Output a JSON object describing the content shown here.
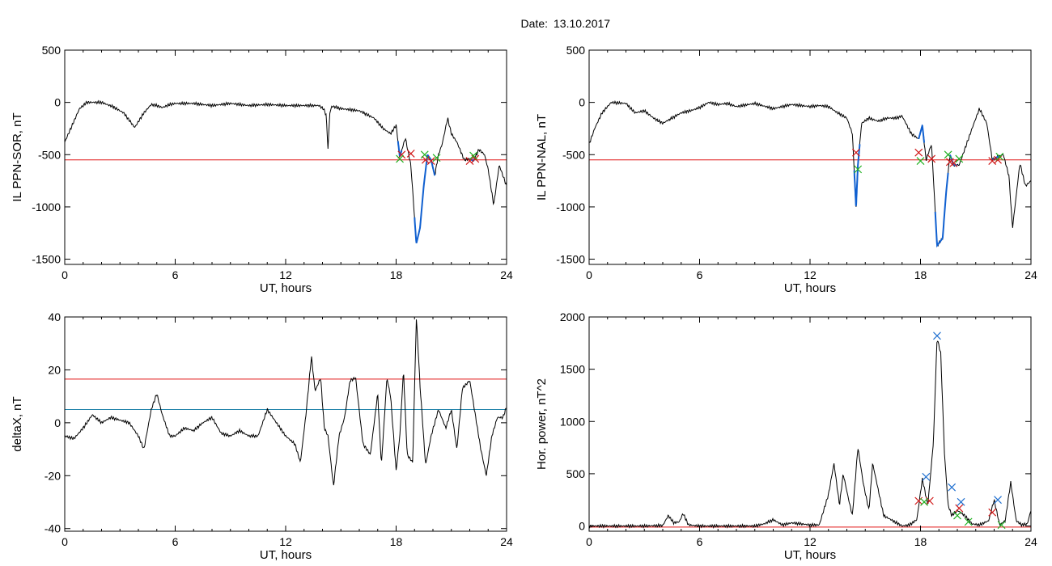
{
  "header": {
    "date_label": "Date:",
    "date_value": "13.10.2017"
  },
  "colors": {
    "trace": "#000000",
    "threshold_red": "#e01010",
    "threshold_blue": "#1a7fa8",
    "blue_segment": "#1060d0",
    "marker_red": "#d01818",
    "marker_green": "#20b020",
    "marker_blue": "#2070d0"
  },
  "chart_data": [
    {
      "id": "p1",
      "type": "line",
      "ylabel": "IL PPN-SOR, nT",
      "xlabel": "UT, hours",
      "xlim": [
        0,
        24
      ],
      "ylim": [
        -1550,
        500
      ],
      "xticks": [
        0,
        6,
        12,
        18,
        24
      ],
      "yticks": [
        500,
        0,
        -500,
        -1000,
        -1500
      ],
      "xtick_labels": [
        "0",
        "6",
        "12",
        "18",
        "24"
      ],
      "ytick_labels": [
        "500",
        "0",
        "-500",
        "-1000",
        "-1500"
      ],
      "threshold": -550,
      "series": [
        {
          "x": [
            0,
            0.2,
            0.5,
            0.8,
            1.2,
            2,
            2.6,
            3.2,
            3.8,
            4.3,
            4.7,
            5,
            5.3,
            5.7,
            6,
            7,
            8,
            9,
            10,
            11,
            12,
            13,
            13.8,
            14.05,
            14.2,
            14.3,
            14.4,
            14.5,
            14.6,
            15,
            16,
            16.8,
            17.3,
            17.7,
            18,
            18.2,
            18.5,
            18.8,
            19.1,
            19.3,
            19.5,
            19.7,
            19.9,
            20.1,
            20.3,
            20.5,
            20.8,
            21,
            21.3,
            21.7,
            22,
            22.2,
            22.5,
            22.8,
            23,
            23.3,
            23.6,
            24
          ],
          "y": [
            -380,
            -300,
            -180,
            -60,
            0,
            0,
            -40,
            -100,
            -240,
            -100,
            -20,
            -30,
            -50,
            -20,
            -10,
            -10,
            -30,
            -10,
            -30,
            -20,
            -30,
            -30,
            -30,
            -60,
            -120,
            -450,
            -100,
            -40,
            -40,
            -60,
            -80,
            -150,
            -250,
            -300,
            -220,
            -520,
            -340,
            -600,
            -1350,
            -1200,
            -800,
            -500,
            -550,
            -700,
            -500,
            -400,
            -150,
            -300,
            -380,
            -550,
            -540,
            -560,
            -450,
            -500,
            -640,
            -980,
            -600,
            -800
          ]
        }
      ],
      "blue_segments": [
        [
          18.1,
          18.3
        ],
        [
          19.0,
          19.7
        ],
        [
          19.7,
          20.1
        ],
        [
          22,
          22.3
        ]
      ],
      "markers": [
        {
          "x": 18.3,
          "y": -500,
          "c": "red"
        },
        {
          "x": 18.8,
          "y": -490,
          "c": "red"
        },
        {
          "x": 19.6,
          "y": -550,
          "c": "red"
        },
        {
          "x": 19.9,
          "y": -560,
          "c": "red"
        },
        {
          "x": 22.0,
          "y": -560,
          "c": "red"
        },
        {
          "x": 22.3,
          "y": -540,
          "c": "red"
        },
        {
          "x": 18.2,
          "y": -540,
          "c": "green"
        },
        {
          "x": 19.55,
          "y": -500,
          "c": "green"
        },
        {
          "x": 20.2,
          "y": -530,
          "c": "green"
        },
        {
          "x": 22.2,
          "y": -510,
          "c": "green"
        }
      ]
    },
    {
      "id": "p2",
      "type": "line",
      "ylabel": "IL PPN-NAL, nT",
      "xlabel": "UT, hours",
      "xlim": [
        0,
        24
      ],
      "ylim": [
        -1550,
        500
      ],
      "xticks": [
        0,
        6,
        12,
        18,
        24
      ],
      "yticks": [
        500,
        0,
        -500,
        -1000,
        -1500
      ],
      "xtick_labels": [
        "0",
        "6",
        "12",
        "18",
        "24"
      ],
      "ytick_labels": [
        "500",
        "0",
        "-500",
        "-1000",
        "-1500"
      ],
      "threshold": -550,
      "series": [
        {
          "x": [
            0,
            0.3,
            0.7,
            1.2,
            2,
            2.5,
            3,
            3.5,
            4,
            4.5,
            5,
            5.5,
            6,
            6.5,
            7,
            7.5,
            8,
            9,
            10,
            11,
            12,
            12.5,
            13,
            13.5,
            14,
            14.3,
            14.5,
            14.6,
            14.8,
            15.2,
            15.7,
            16.2,
            16.7,
            17,
            17.5,
            17.9,
            18.1,
            18.3,
            18.6,
            18.9,
            19.2,
            19.4,
            19.6,
            19.8,
            20.1,
            20.4,
            20.8,
            21.2,
            21.6,
            21.9,
            22.2,
            22.5,
            22.8,
            23,
            23.4,
            23.7,
            24
          ],
          "y": [
            -400,
            -250,
            -100,
            0,
            -10,
            -100,
            -80,
            -150,
            -200,
            -150,
            -100,
            -80,
            -50,
            0,
            -20,
            -10,
            -40,
            -10,
            -60,
            -20,
            -40,
            -30,
            -40,
            -100,
            -150,
            -300,
            -1000,
            -600,
            -200,
            -150,
            -180,
            -150,
            -150,
            -130,
            -300,
            -350,
            -220,
            -550,
            -400,
            -1370,
            -1300,
            -850,
            -500,
            -600,
            -600,
            -450,
            -250,
            -60,
            -200,
            -550,
            -520,
            -500,
            -700,
            -1200,
            -580,
            -800,
            -750
          ]
        }
      ],
      "blue_segments": [
        [
          14.4,
          14.7
        ],
        [
          17.9,
          18.2
        ],
        [
          18.8,
          19.5
        ],
        [
          19.6,
          20
        ],
        [
          21.9,
          22.3
        ]
      ],
      "markers": [
        {
          "x": 14.5,
          "y": -480,
          "c": "red"
        },
        {
          "x": 17.9,
          "y": -480,
          "c": "red"
        },
        {
          "x": 18.6,
          "y": -540,
          "c": "red"
        },
        {
          "x": 19.6,
          "y": -570,
          "c": "red"
        },
        {
          "x": 19.8,
          "y": -580,
          "c": "red"
        },
        {
          "x": 21.9,
          "y": -560,
          "c": "red"
        },
        {
          "x": 22.2,
          "y": -550,
          "c": "red"
        },
        {
          "x": 14.6,
          "y": -640,
          "c": "green"
        },
        {
          "x": 18.0,
          "y": -560,
          "c": "green"
        },
        {
          "x": 19.5,
          "y": -500,
          "c": "green"
        },
        {
          "x": 20.1,
          "y": -540,
          "c": "green"
        },
        {
          "x": 22.3,
          "y": -520,
          "c": "green"
        }
      ]
    },
    {
      "id": "p3",
      "type": "line",
      "ylabel": "deltaX, nT",
      "xlabel": "UT, hours",
      "xlim": [
        0,
        24
      ],
      "ylim": [
        -41,
        40
      ],
      "xticks": [
        0,
        6,
        12,
        18,
        24
      ],
      "yticks": [
        40,
        20,
        0,
        -20,
        -40
      ],
      "xtick_labels": [
        "0",
        "6",
        "12",
        "18",
        "24"
      ],
      "ytick_labels": [
        "40",
        "20",
        "0",
        "-20",
        "-40"
      ],
      "threshold": 16.5,
      "threshold2": 5,
      "series": [
        {
          "x": [
            0,
            0.5,
            1,
            1.5,
            2,
            2.5,
            3,
            3.5,
            4,
            4.3,
            4.7,
            5,
            5.3,
            5.7,
            6,
            6.5,
            7,
            7.5,
            8,
            8.5,
            9,
            9.5,
            10,
            10.5,
            11,
            11.5,
            12,
            12.5,
            12.8,
            13.1,
            13.4,
            13.6,
            13.9,
            14.1,
            14.3,
            14.6,
            14.9,
            15.2,
            15.5,
            15.8,
            16.2,
            16.6,
            17,
            17.2,
            17.5,
            17.7,
            18,
            18.2,
            18.4,
            18.6,
            18.9,
            19.1,
            19.3,
            19.6,
            19.9,
            20.3,
            20.7,
            21,
            21.3,
            21.6,
            22,
            22.3,
            22.6,
            22.9,
            23.2,
            23.5,
            23.8,
            24
          ],
          "y": [
            -5,
            -6,
            -2,
            3,
            0,
            2,
            1,
            0,
            -5,
            -10,
            5,
            11,
            3,
            -5,
            -5,
            -2,
            -3,
            0,
            2,
            -4,
            -5,
            -3,
            -5,
            -5,
            5,
            0,
            -5,
            -8,
            -15,
            3,
            25,
            12,
            17,
            -2,
            -5,
            -24,
            -5,
            2,
            16,
            17,
            -8,
            -12,
            11,
            -16,
            17,
            10,
            -18,
            -5,
            20,
            -12,
            -15,
            40,
            14,
            -16,
            -5,
            5,
            -2,
            5,
            -10,
            13,
            16,
            3,
            -10,
            -20,
            -5,
            2,
            2,
            6
          ]
        }
      ],
      "blue_segments": [],
      "markers": []
    },
    {
      "id": "p4",
      "type": "line",
      "ylabel": "Hor. power, nT^2",
      "xlabel": "UT, hours",
      "xlim": [
        0,
        24
      ],
      "ylim": [
        -50,
        2000
      ],
      "xticks": [
        0,
        6,
        12,
        18,
        24
      ],
      "yticks": [
        2000,
        1500,
        1000,
        500,
        0
      ],
      "xtick_labels": [
        "0",
        "6",
        "12",
        "18",
        "24"
      ],
      "ytick_labels": [
        "2000",
        "1500",
        "1000",
        "500",
        "0"
      ],
      "threshold": -10,
      "series": [
        {
          "x": [
            0,
            1,
            2,
            3,
            4,
            4.3,
            4.6,
            4.9,
            5.1,
            5.4,
            6,
            7,
            8,
            9,
            9.5,
            10,
            10.5,
            11,
            12,
            12.5,
            13,
            13.3,
            13.6,
            13.8,
            14.1,
            14.3,
            14.6,
            14.9,
            15.2,
            15.4,
            15.7,
            16,
            16.5,
            17,
            17.4,
            17.8,
            18.1,
            18.4,
            18.7,
            18.9,
            19.1,
            19.3,
            19.5,
            19.7,
            20,
            20.4,
            20.8,
            21.2,
            21.7,
            22,
            22.3,
            22.6,
            22.9,
            23.2,
            23.5,
            23.8,
            24
          ],
          "y": [
            0,
            0,
            0,
            0,
            5,
            100,
            30,
            40,
            120,
            10,
            0,
            0,
            0,
            0,
            20,
            60,
            10,
            30,
            10,
            10,
            300,
            600,
            200,
            500,
            250,
            100,
            750,
            400,
            150,
            600,
            350,
            100,
            50,
            0,
            10,
            60,
            450,
            200,
            800,
            1800,
            1650,
            700,
            200,
            100,
            150,
            100,
            20,
            10,
            50,
            250,
            10,
            50,
            420,
            50,
            10,
            20,
            150
          ]
        }
      ],
      "blue_segments": [],
      "markers": [
        {
          "x": 18.3,
          "y": 470,
          "c": "blue"
        },
        {
          "x": 18.9,
          "y": 1820,
          "c": "blue"
        },
        {
          "x": 19.7,
          "y": 370,
          "c": "blue"
        },
        {
          "x": 20.2,
          "y": 230,
          "c": "blue"
        },
        {
          "x": 22.2,
          "y": 250,
          "c": "blue"
        },
        {
          "x": 17.9,
          "y": 240,
          "c": "red"
        },
        {
          "x": 18.5,
          "y": 240,
          "c": "red"
        },
        {
          "x": 20.1,
          "y": 170,
          "c": "red"
        },
        {
          "x": 21.9,
          "y": 130,
          "c": "red"
        },
        {
          "x": 18.2,
          "y": 230,
          "c": "green"
        },
        {
          "x": 20.0,
          "y": 100,
          "c": "green"
        },
        {
          "x": 20.6,
          "y": 40,
          "c": "green"
        },
        {
          "x": 22.4,
          "y": 10,
          "c": "green"
        }
      ]
    }
  ]
}
